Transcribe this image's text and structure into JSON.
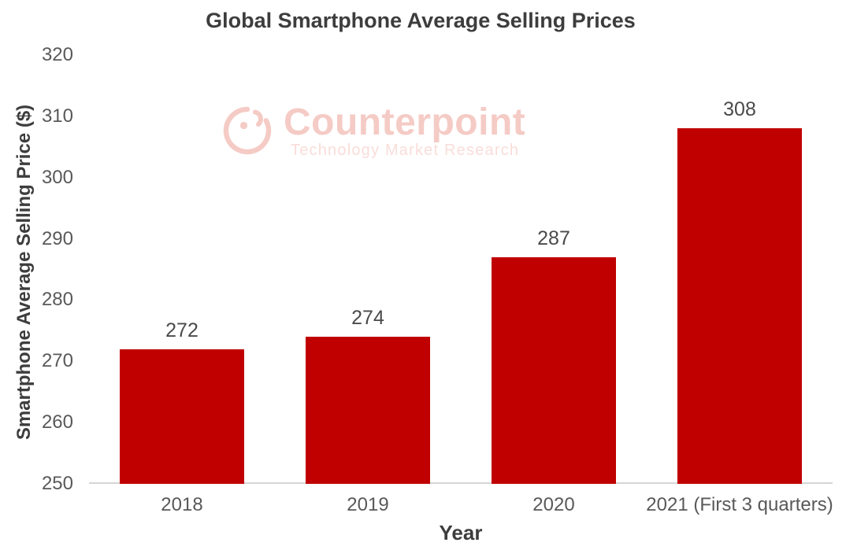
{
  "chart_data": {
    "type": "bar",
    "title": "Global Smartphone Average Selling Prices",
    "xlabel": "Year",
    "ylabel": "Smartphone Average Selling Price ($)",
    "categories": [
      "2018",
      "2019",
      "2020",
      "2021 (First 3 quarters)"
    ],
    "values": [
      272,
      274,
      287,
      308
    ],
    "ylim": [
      250,
      320
    ],
    "ytick_step": 10,
    "bar_color": "#c00000",
    "grid": false,
    "legend": false
  },
  "watermark": {
    "brand": "Counterpoint",
    "tagline": "Technology Market Research",
    "logo": "counterpoint-circle-logo",
    "brand_color": "#f5cbc5",
    "tagline_color": "#f9ddd9"
  }
}
